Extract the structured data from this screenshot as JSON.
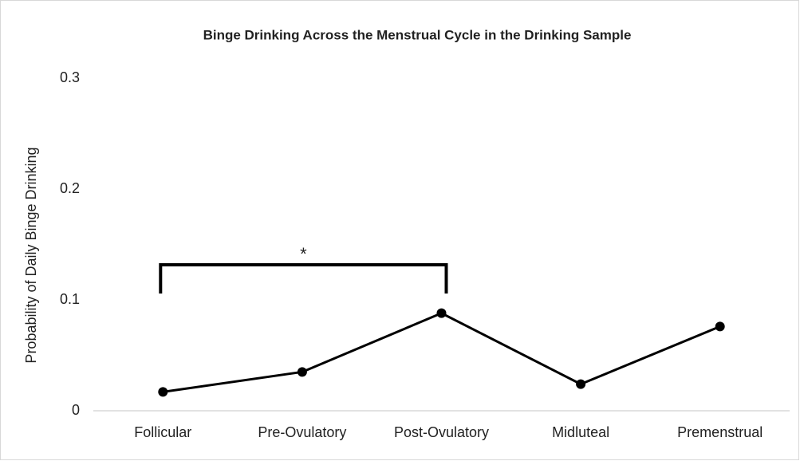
{
  "chart_data": {
    "type": "line",
    "title": "Binge Drinking Across the Menstrual Cycle in the Drinking Sample",
    "y_label": "Probability of Daily Binge Drinking",
    "categories": [
      "Follicular",
      "Pre-Ovulatory",
      "Post-Ovulatory",
      "Midluteal",
      "Premenstrual"
    ],
    "values": [
      0.017,
      0.035,
      0.088,
      0.024,
      0.076
    ],
    "color": "#000000",
    "ylim": [
      0,
      0.3
    ],
    "yticks": [
      0,
      0.1,
      0.2,
      0.3
    ],
    "grid": false,
    "annotation": "*"
  }
}
